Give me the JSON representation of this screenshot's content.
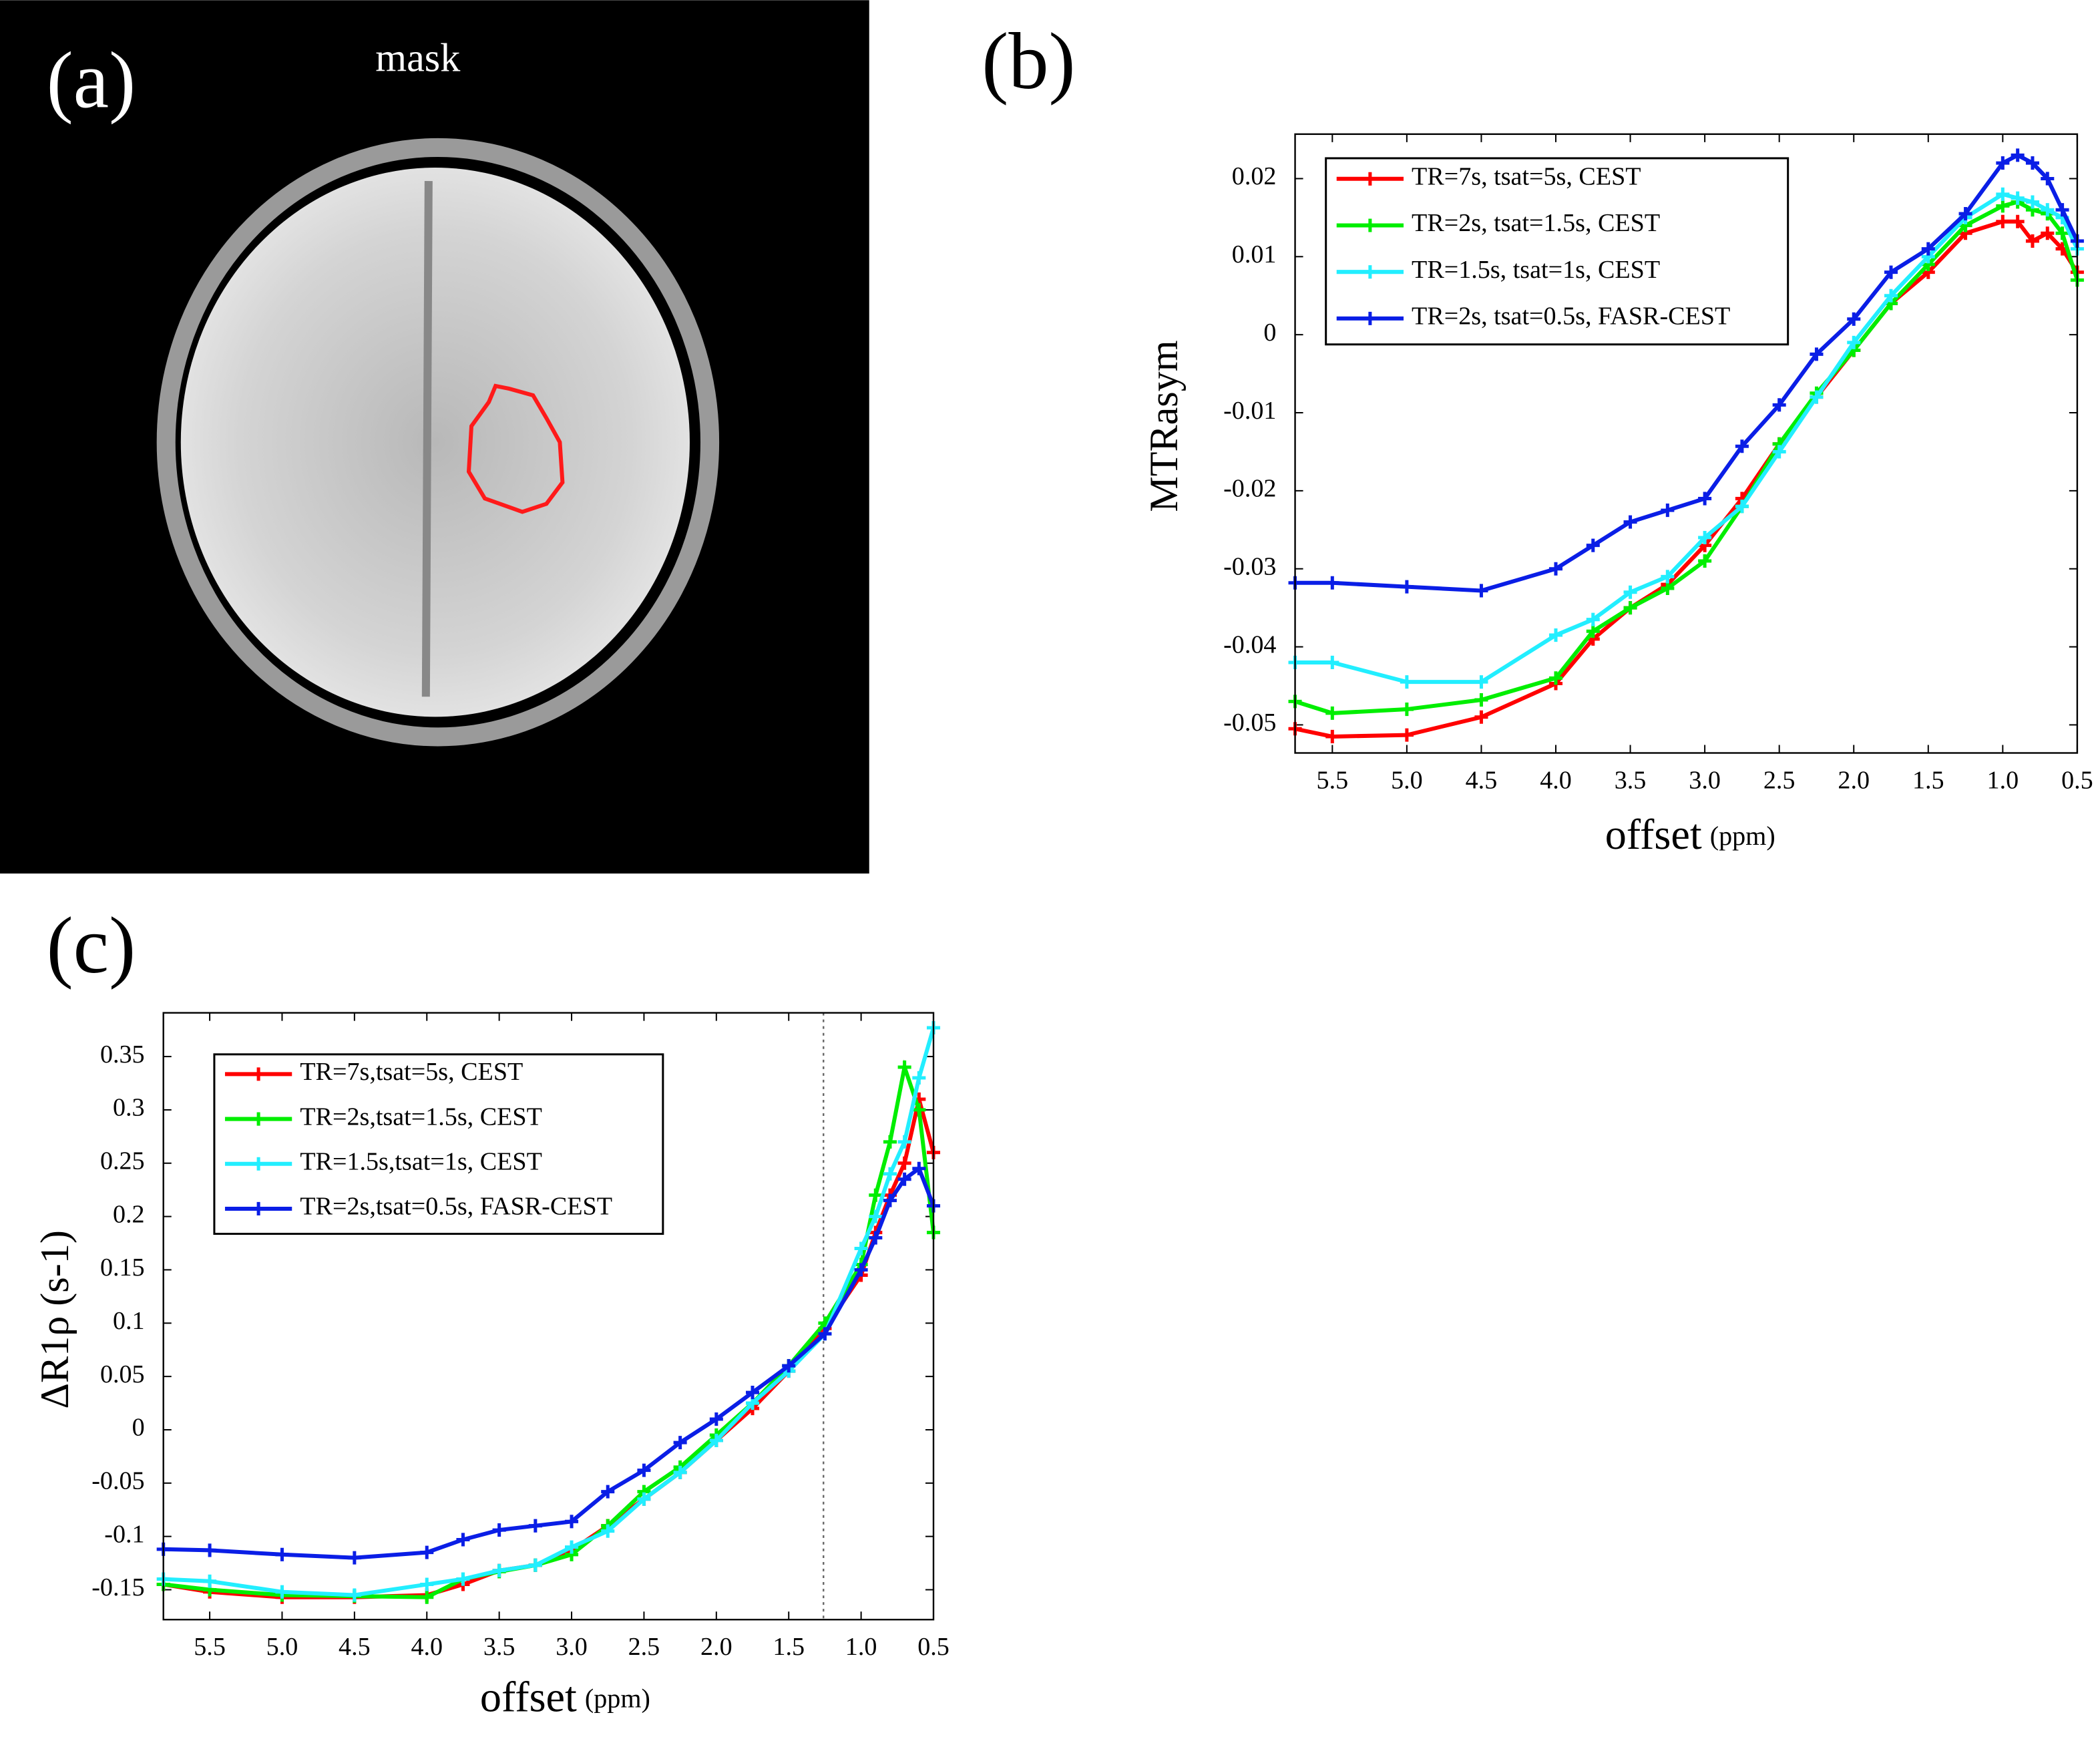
{
  "image_panel": {
    "label": "(a)",
    "title": "mask"
  },
  "chart_data": [
    {
      "type": "line",
      "panel_label": "(b)",
      "y_label": "MTRasym",
      "x_label": "offset",
      "x_label_unit": "(ppm)",
      "x": [
        5.75,
        5.5,
        5.0,
        4.5,
        4.0,
        3.75,
        3.5,
        3.25,
        3.0,
        2.75,
        2.5,
        2.25,
        2.0,
        1.75,
        1.5,
        1.25,
        1.0,
        0.9,
        0.8,
        0.7,
        0.6,
        0.5
      ],
      "xlim": [
        5.75,
        0.5
      ],
      "ylim": [
        -0.0536,
        0.0257
      ],
      "xticks": [
        {
          "value": 5.5,
          "label": "5.5"
        },
        {
          "value": 5,
          "label": "5.0"
        },
        {
          "value": 4.5,
          "label": "4.5"
        },
        {
          "value": 4,
          "label": "4.0"
        },
        {
          "value": 3.5,
          "label": "3.5"
        },
        {
          "value": 3,
          "label": "3.0"
        },
        {
          "value": 2.5,
          "label": "2.5"
        },
        {
          "value": 2,
          "label": "2.0"
        },
        {
          "value": 1.5,
          "label": "1.5"
        },
        {
          "value": 1,
          "label": "1.0"
        },
        {
          "value": 0.5,
          "label": "0.5"
        }
      ],
      "yticks": [
        0.02,
        0.01,
        0,
        -0.01,
        -0.02,
        -0.03,
        -0.04,
        -0.05
      ],
      "legend": "upper left",
      "marker": "+",
      "series": [
        {
          "name": "TR=7s, tsat=5s, CEST",
          "color": "#ff0000",
          "values": [
            -0.0505,
            -0.0515,
            -0.0513,
            -0.049,
            -0.0447,
            -0.039,
            -0.035,
            -0.032,
            -0.027,
            -0.021,
            -0.014,
            -0.008,
            -0.002,
            0.004,
            0.008,
            0.013,
            0.0145,
            0.0145,
            0.012,
            0.013,
            0.011,
            0.008
          ]
        },
        {
          "name": "TR=2s, tsat=1.5s, CEST",
          "color": "#00ee00",
          "values": [
            -0.047,
            -0.0485,
            -0.048,
            -0.0468,
            -0.044,
            -0.038,
            -0.035,
            -0.0325,
            -0.029,
            -0.022,
            -0.014,
            -0.0075,
            -0.002,
            0.004,
            0.009,
            0.014,
            0.0165,
            0.017,
            0.016,
            0.0155,
            0.013,
            0.007
          ]
        },
        {
          "name": "TR=1.5s, tsat=1s, CEST",
          "color": "#22eeff",
          "values": [
            -0.042,
            -0.042,
            -0.0445,
            -0.0445,
            -0.0385,
            -0.0365,
            -0.033,
            -0.031,
            -0.026,
            -0.022,
            -0.015,
            -0.008,
            -0.001,
            0.005,
            0.01,
            0.015,
            0.018,
            0.0175,
            0.017,
            0.016,
            0.015,
            0.011
          ]
        },
        {
          "name": "TR=2s, tsat=0.5s, FASR-CEST",
          "color": "#0a1ee6",
          "values": [
            -0.0318,
            -0.0318,
            -0.0323,
            -0.0328,
            -0.03,
            -0.027,
            -0.024,
            -0.0225,
            -0.021,
            -0.0143,
            -0.009,
            -0.0025,
            0.002,
            0.008,
            0.011,
            0.0155,
            0.022,
            0.023,
            0.022,
            0.02,
            0.016,
            0.012
          ]
        }
      ]
    },
    {
      "type": "line",
      "panel_label": "(c)",
      "y_label": "ΔR1ρ (s-1)",
      "x_label": "offset",
      "x_label_unit": "(ppm)",
      "x": [
        5.82,
        5.5,
        5.0,
        4.5,
        4.0,
        3.75,
        3.5,
        3.25,
        3.0,
        2.75,
        2.5,
        2.25,
        2.0,
        1.75,
        1.5,
        1.25,
        1.0,
        0.9,
        0.8,
        0.7,
        0.6,
        0.5
      ],
      "xlim": [
        5.82,
        0.5
      ],
      "ylim": [
        -0.178,
        0.391
      ],
      "xticks": [
        {
          "value": 5.5,
          "label": "5.5"
        },
        {
          "value": 5,
          "label": "5.0"
        },
        {
          "value": 4.5,
          "label": "4.5"
        },
        {
          "value": 4,
          "label": "4.0"
        },
        {
          "value": 3.5,
          "label": "3.5"
        },
        {
          "value": 3,
          "label": "3.0"
        },
        {
          "value": 2.5,
          "label": "2.5"
        },
        {
          "value": 2,
          "label": "2.0"
        },
        {
          "value": 1.5,
          "label": "1.5"
        },
        {
          "value": 1,
          "label": "1.0"
        },
        {
          "value": 0.5,
          "label": "0.5"
        }
      ],
      "yticks": [
        0.35,
        0.3,
        0.25,
        0.2,
        0.15,
        0.1,
        0.05,
        0,
        -0.05,
        -0.1,
        -0.15
      ],
      "legend": "upper left",
      "marker": "+",
      "reference_line": 1.26,
      "series": [
        {
          "name": "TR=7s,tsat=5s, CEST",
          "color": "#ff0000",
          "values": [
            -0.145,
            -0.152,
            -0.157,
            -0.157,
            -0.155,
            -0.145,
            -0.132,
            -0.127,
            -0.113,
            -0.09,
            -0.065,
            -0.04,
            -0.01,
            0.02,
            0.055,
            0.095,
            0.145,
            0.185,
            0.22,
            0.25,
            0.31,
            0.26
          ]
        },
        {
          "name": "TR=2s,tsat=1.5s, CEST",
          "color": "#00ee00",
          "values": [
            -0.145,
            -0.15,
            -0.155,
            -0.156,
            -0.157,
            -0.14,
            -0.133,
            -0.127,
            -0.117,
            -0.09,
            -0.058,
            -0.035,
            -0.005,
            0.025,
            0.06,
            0.1,
            0.155,
            0.22,
            0.27,
            0.34,
            0.3,
            0.185
          ]
        },
        {
          "name": "TR=1.5s,tsat=1s, CEST",
          "color": "#22eeff",
          "values": [
            -0.14,
            -0.142,
            -0.152,
            -0.155,
            -0.145,
            -0.14,
            -0.132,
            -0.127,
            -0.11,
            -0.095,
            -0.065,
            -0.04,
            -0.01,
            0.025,
            0.055,
            0.09,
            0.17,
            0.2,
            0.24,
            0.27,
            0.33,
            0.377
          ]
        },
        {
          "name": "TR=2s,tsat=0.5s, FASR-CEST",
          "color": "#0a1ee6",
          "values": [
            -0.112,
            -0.113,
            -0.117,
            -0.12,
            -0.115,
            -0.103,
            -0.094,
            -0.09,
            -0.086,
            -0.058,
            -0.038,
            -0.012,
            0.01,
            0.035,
            0.06,
            0.09,
            0.15,
            0.18,
            0.215,
            0.235,
            0.245,
            0.21
          ]
        }
      ]
    }
  ]
}
